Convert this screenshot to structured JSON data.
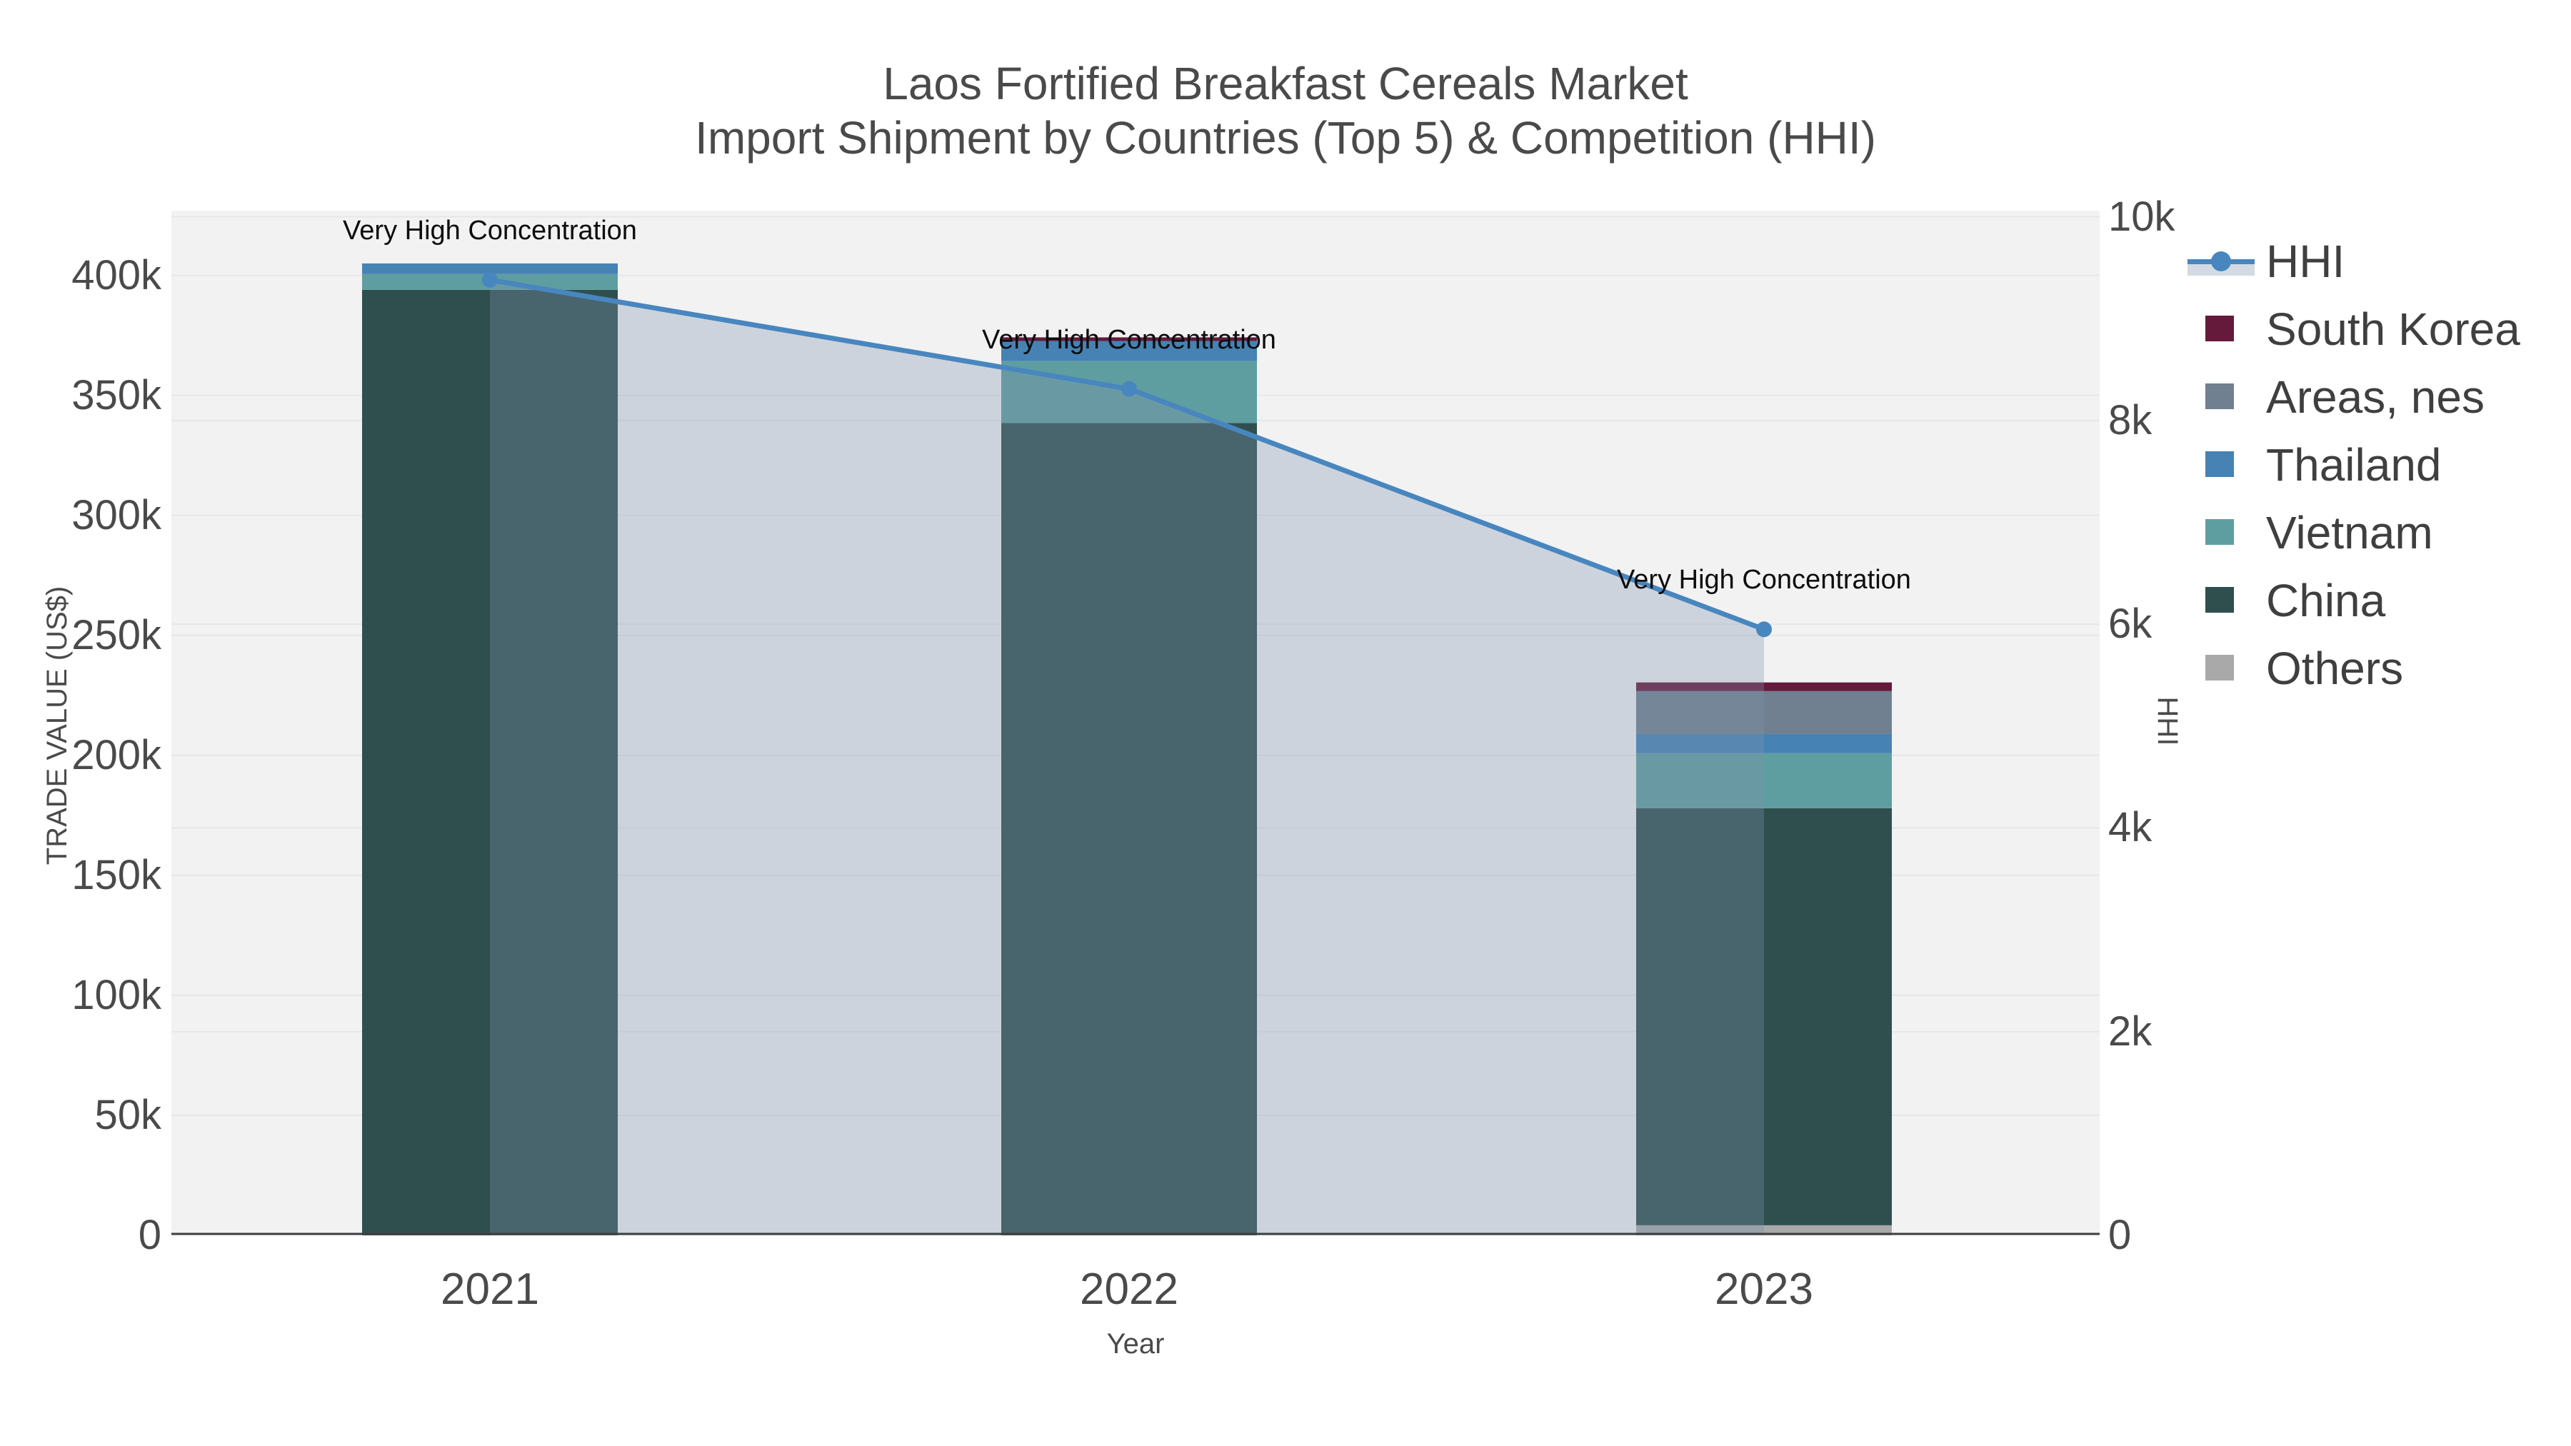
{
  "title": {
    "line1": "Laos Fortified Breakfast Cereals Market",
    "line2": "Import Shipment by Countries (Top 5) & Competition (HHI)"
  },
  "legend": {
    "items": [
      {
        "label": "HHI",
        "type": "line",
        "color": "#4886bf"
      },
      {
        "label": "South Korea",
        "type": "box",
        "color": "#651a3c"
      },
      {
        "label": "Areas, nes",
        "type": "box",
        "color": "#708090"
      },
      {
        "label": "Thailand",
        "type": "box",
        "color": "#4682b4"
      },
      {
        "label": "Vietnam",
        "type": "box",
        "color": "#5f9ea0"
      },
      {
        "label": "China",
        "type": "box",
        "color": "#2f4f4f"
      },
      {
        "label": "Others",
        "type": "box",
        "color": "#a9a9a9"
      }
    ]
  },
  "chart_data": {
    "type": "bar+line",
    "title": "Laos Fortified Breakfast Cereals Market — Import Shipment by Countries (Top 5) & Competition (HHI)",
    "categories": [
      "2021",
      "2022",
      "2023"
    ],
    "stacked_series_bottom_to_top": [
      {
        "name": "Others",
        "color": "#a9a9a9",
        "values": [
          0,
          0,
          4200
        ]
      },
      {
        "name": "China",
        "color": "#2f4f4f",
        "values": [
          394000,
          338500,
          173800
        ]
      },
      {
        "name": "Vietnam",
        "color": "#5f9ea0",
        "values": [
          6600,
          25800,
          22900
        ]
      },
      {
        "name": "Thailand",
        "color": "#4682b4",
        "values": [
          4400,
          8400,
          8000
        ]
      },
      {
        "name": "Areas, nes",
        "color": "#708090",
        "values": [
          0,
          0,
          17900
        ]
      },
      {
        "name": "South Korea",
        "color": "#651a3c",
        "values": [
          0,
          1500,
          3600
        ]
      }
    ],
    "bar_totals": [
      405000,
      374200,
      230400
    ],
    "line_series": {
      "name": "HHI",
      "axis": "right",
      "color": "#4886bf",
      "fill": "tozero",
      "fill_color": "#7e91ad",
      "fill_opacity": 0.32,
      "values": [
        9380,
        8310,
        5950
      ]
    },
    "annotations": [
      {
        "text": "Very High Concentration",
        "category": "2021"
      },
      {
        "text": "Very High Concentration",
        "category": "2022"
      },
      {
        "text": "Very High Concentration",
        "category": "2023"
      }
    ],
    "xlabel": "Year",
    "ylabel_left": "TRADE VALUE (US$)",
    "ylabel_right": "HHI",
    "ylim_left": [
      0,
      427000
    ],
    "ylim_right": [
      0,
      10060
    ],
    "left_ticks": {
      "labels": [
        "0",
        "50k",
        "100k",
        "150k",
        "200k",
        "250k",
        "300k",
        "350k",
        "400k"
      ],
      "values": [
        0,
        50000,
        100000,
        150000,
        200000,
        250000,
        300000,
        350000,
        400000
      ]
    },
    "right_ticks": {
      "labels": [
        "0",
        "2k",
        "4k",
        "6k",
        "8k",
        "10k"
      ],
      "values": [
        0,
        2000,
        4000,
        6000,
        8000,
        10000
      ]
    },
    "grid": true,
    "legend_position": "right",
    "plot_background": "#f2f2f2",
    "gridline_color": "#e7e7e7",
    "axisline_color": "#3f3f3f"
  }
}
